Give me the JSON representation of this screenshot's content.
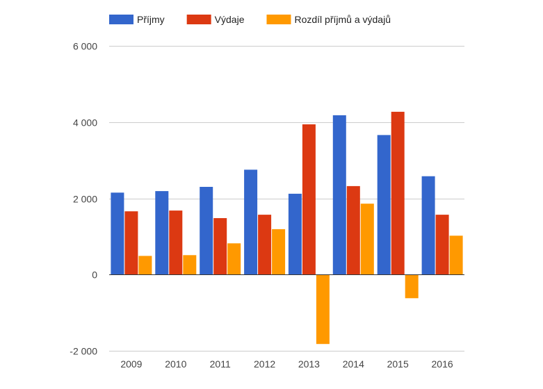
{
  "chart_data": {
    "type": "bar",
    "categories": [
      "2009",
      "2010",
      "2011",
      "2012",
      "2013",
      "2014",
      "2015",
      "2016"
    ],
    "series": [
      {
        "name": "Příjmy",
        "color": "#3366cc",
        "values": [
          2150,
          2190,
          2300,
          2750,
          2120,
          4180,
          3660,
          2580
        ]
      },
      {
        "name": "Výdaje",
        "color": "#dc3912",
        "values": [
          1660,
          1680,
          1480,
          1570,
          3940,
          2320,
          4270,
          1570
        ]
      },
      {
        "name": "Rozdíl příjmů a výdajů",
        "color": "#ff9900",
        "values": [
          490,
          510,
          820,
          1190,
          -1820,
          1860,
          -620,
          1020
        ]
      }
    ],
    "y_ticks": [
      -2000,
      0,
      2000,
      4000,
      6000
    ],
    "y_tick_labels": [
      "-2 000",
      "0",
      "2 000",
      "4 000",
      "6 000"
    ],
    "ylim": [
      -2000,
      6000
    ],
    "grid": true,
    "legend_position": "top"
  }
}
